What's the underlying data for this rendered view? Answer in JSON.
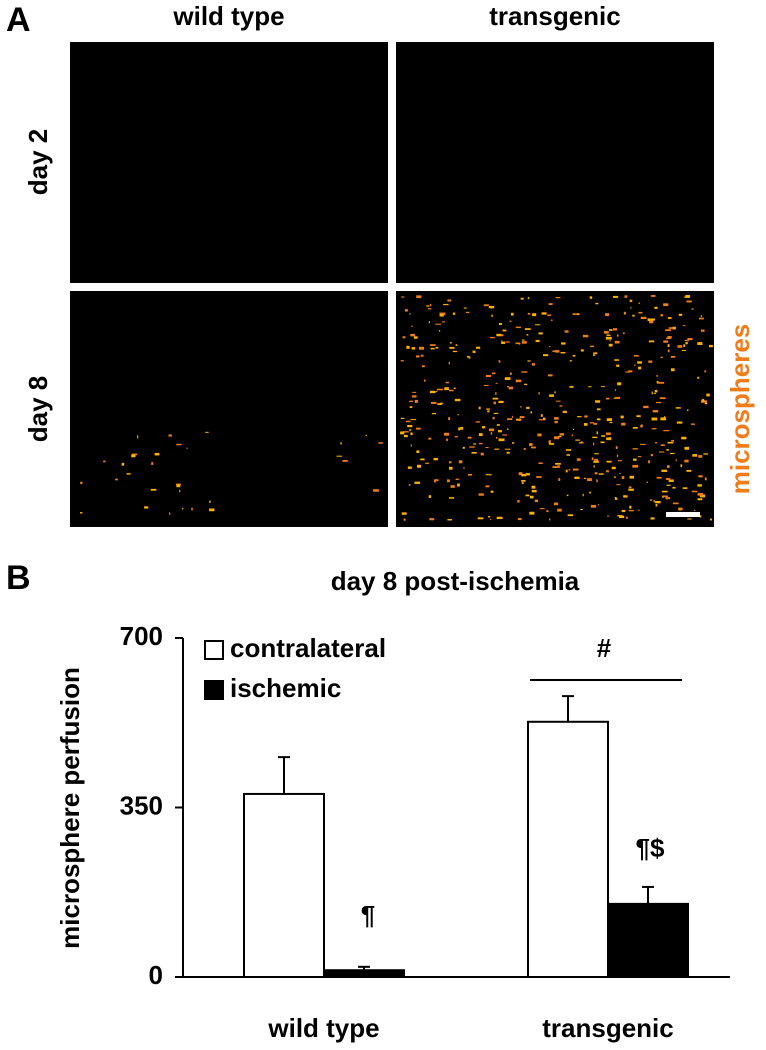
{
  "panel_a": {
    "label": "A",
    "columns": [
      "wild type",
      "transgenic"
    ],
    "rows": [
      "day 2",
      "day 8"
    ],
    "stain": "microspheres"
  },
  "chart_data": {
    "type": "bar",
    "panel_label": "B",
    "title": "day 8 post-ischemia",
    "y_label": "microsphere perfusion",
    "categories": [
      "wild type",
      "transgenic"
    ],
    "series": [
      {
        "name": "contralateral",
        "color": "#ffffff",
        "values": [
          378,
          527
        ],
        "errors": [
          76,
          53
        ]
      },
      {
        "name": "ischemic",
        "color": "#000000",
        "values": [
          14,
          151
        ],
        "errors": [
          7,
          35
        ]
      }
    ],
    "ylim": [
      0,
      700
    ],
    "yticks": [
      0,
      350,
      700
    ],
    "legend": "upper left",
    "annotations": [
      "¶",
      "¶$",
      "#"
    ]
  }
}
